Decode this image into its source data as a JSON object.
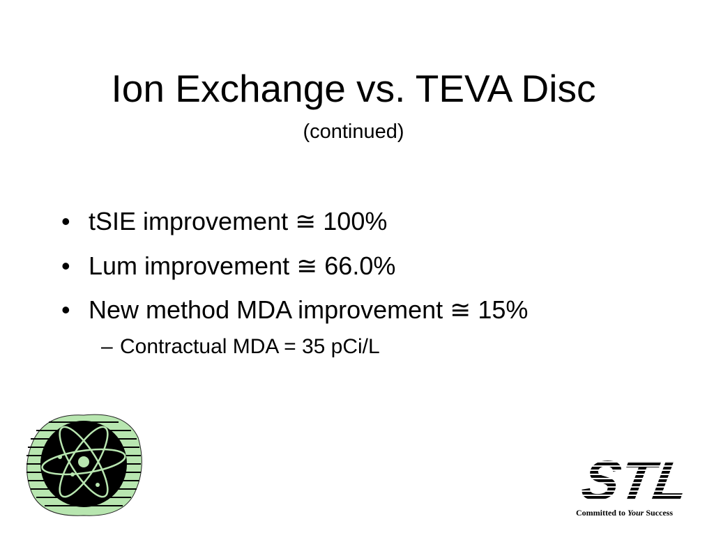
{
  "slide": {
    "title": "Ion Exchange vs. TEVA Disc",
    "subtitle": "(continued)",
    "bullets": [
      "tSIE improvement ≅ 100%",
      "Lum improvement ≅ 66.0%",
      "New method MDA improvement ≅ 15%"
    ],
    "sub_bullets": [
      "Contractual MDA = 35 pCi/L"
    ],
    "logo": {
      "name": "STL",
      "tagline": [
        "Committed to ",
        "Your",
        " Success"
      ]
    }
  }
}
